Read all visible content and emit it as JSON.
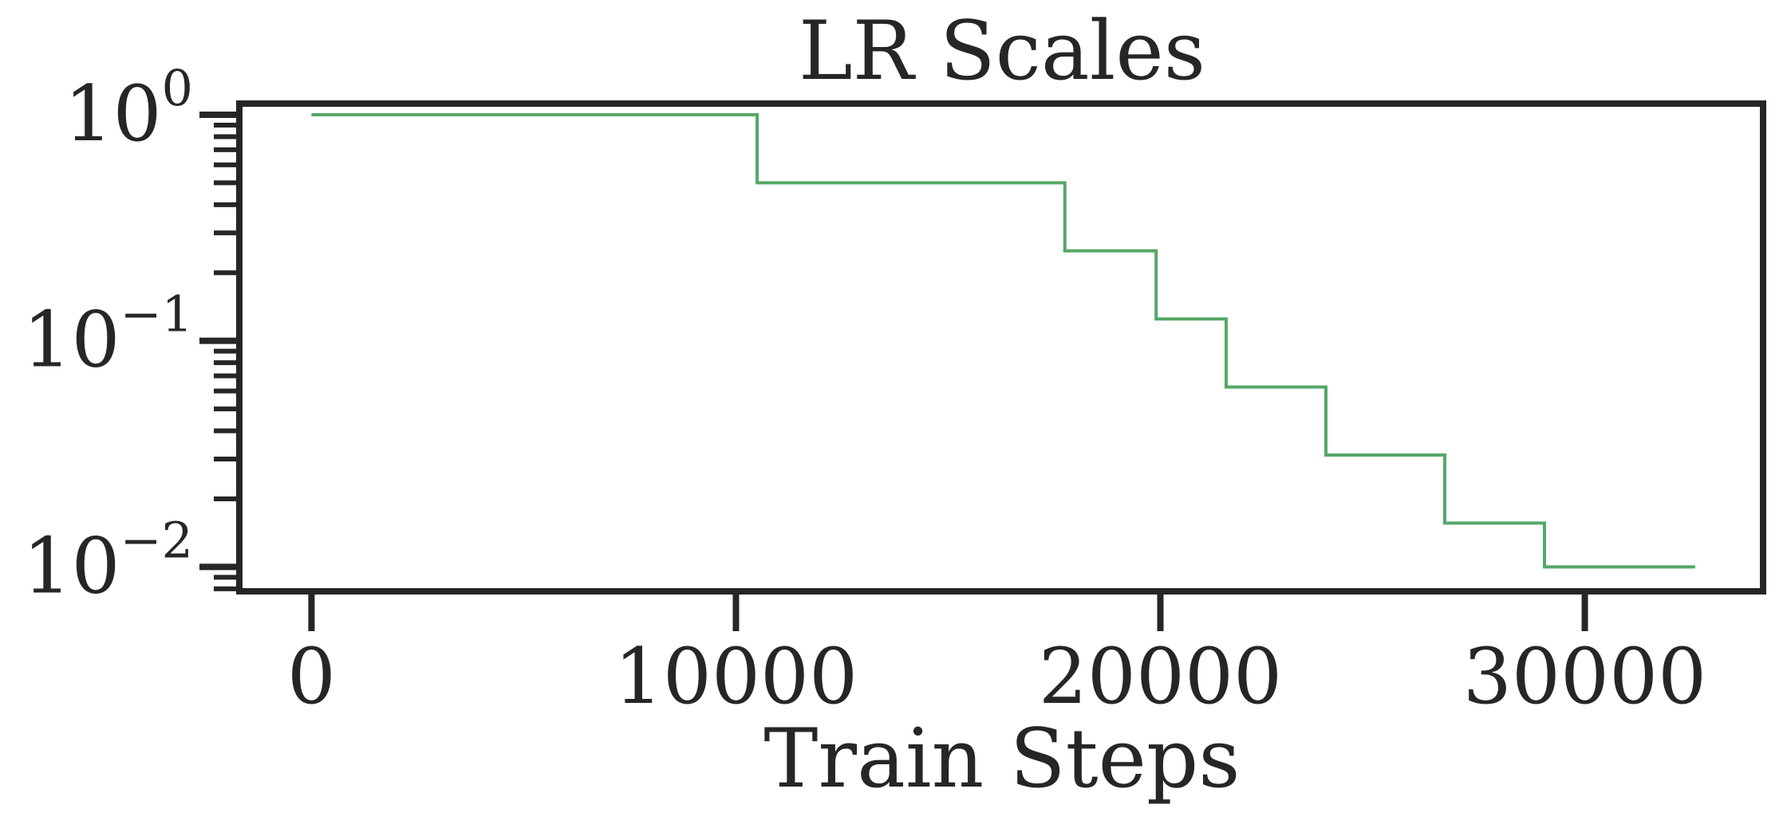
{
  "chart_data": {
    "type": "line",
    "title": "LR Scales",
    "xlabel": "Train Steps",
    "ylabel": "",
    "xscale": "linear",
    "yscale": "log",
    "xlim": [
      -1700,
      34200
    ],
    "ylim": [
      0.0078,
      1.12
    ],
    "grid": false,
    "legend": "none",
    "x_ticks": [
      0,
      10000,
      20000,
      30000
    ],
    "x_tick_labels": [
      "0",
      "10000",
      "20000",
      "30000"
    ],
    "y_ticks": [
      {
        "value": 1,
        "base": "10",
        "exp": "0"
      },
      {
        "value": 0.1,
        "base": "10",
        "exp": "−1"
      },
      {
        "value": 0.01,
        "base": "10",
        "exp": "−2"
      }
    ],
    "series": [
      {
        "color": "#55a868",
        "step": "post",
        "x": [
          0,
          10500,
          17750,
          19900,
          21550,
          23900,
          26700,
          29050,
          32600
        ],
        "y": [
          1.0,
          0.5,
          0.25,
          0.125,
          0.0625,
          0.03125,
          0.015625,
          0.01,
          0.01
        ]
      }
    ]
  }
}
